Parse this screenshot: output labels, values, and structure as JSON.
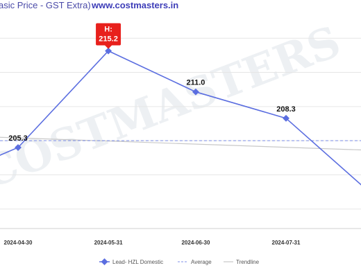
{
  "header": {
    "subtitle_fragment": "asic Price - GST Extra)",
    "website": "www.costmasters.in"
  },
  "watermark_text": "COSTMASTERS",
  "colors": {
    "series": "#5b6ee0",
    "average": "#7d8fe8",
    "trendline": "#c8c8c8",
    "high_badge": "#e8201c",
    "grid": "#e6e6e6"
  },
  "chart_data": {
    "type": "line",
    "x_labels": [
      "2024-04-30",
      "2024-05-31",
      "2024-06-30",
      "2024-07-31"
    ],
    "series": [
      {
        "name": "Lead- HZL Domestic",
        "points": [
          {
            "x": "2024-03-31",
            "y": 201.5
          },
          {
            "x": "2024-04-30",
            "y": 205.3,
            "label": "205.3"
          },
          {
            "x": "2024-05-31",
            "y": 215.2,
            "label": "215.2",
            "high": true
          },
          {
            "x": "2024-06-30",
            "y": 211.0,
            "label": "211.0"
          },
          {
            "x": "2024-07-31",
            "y": 208.3,
            "label": "208.3"
          },
          {
            "x": "2024-08-31",
            "y": 200.1
          }
        ]
      }
    ],
    "average": {
      "name": "Average",
      "value": 206.0
    },
    "trendline": {
      "name": "Trendline",
      "start": {
        "x": "2024-03-31",
        "y": 206.6
      },
      "end": {
        "x": "2024-08-31",
        "y": 205.0
      }
    },
    "high_label": "H:",
    "ylim": [
      197,
      219
    ],
    "legend": [
      "Lead- HZL Domestic",
      "Average",
      "Trendline"
    ],
    "legend_position": "bottom",
    "grid": true
  }
}
